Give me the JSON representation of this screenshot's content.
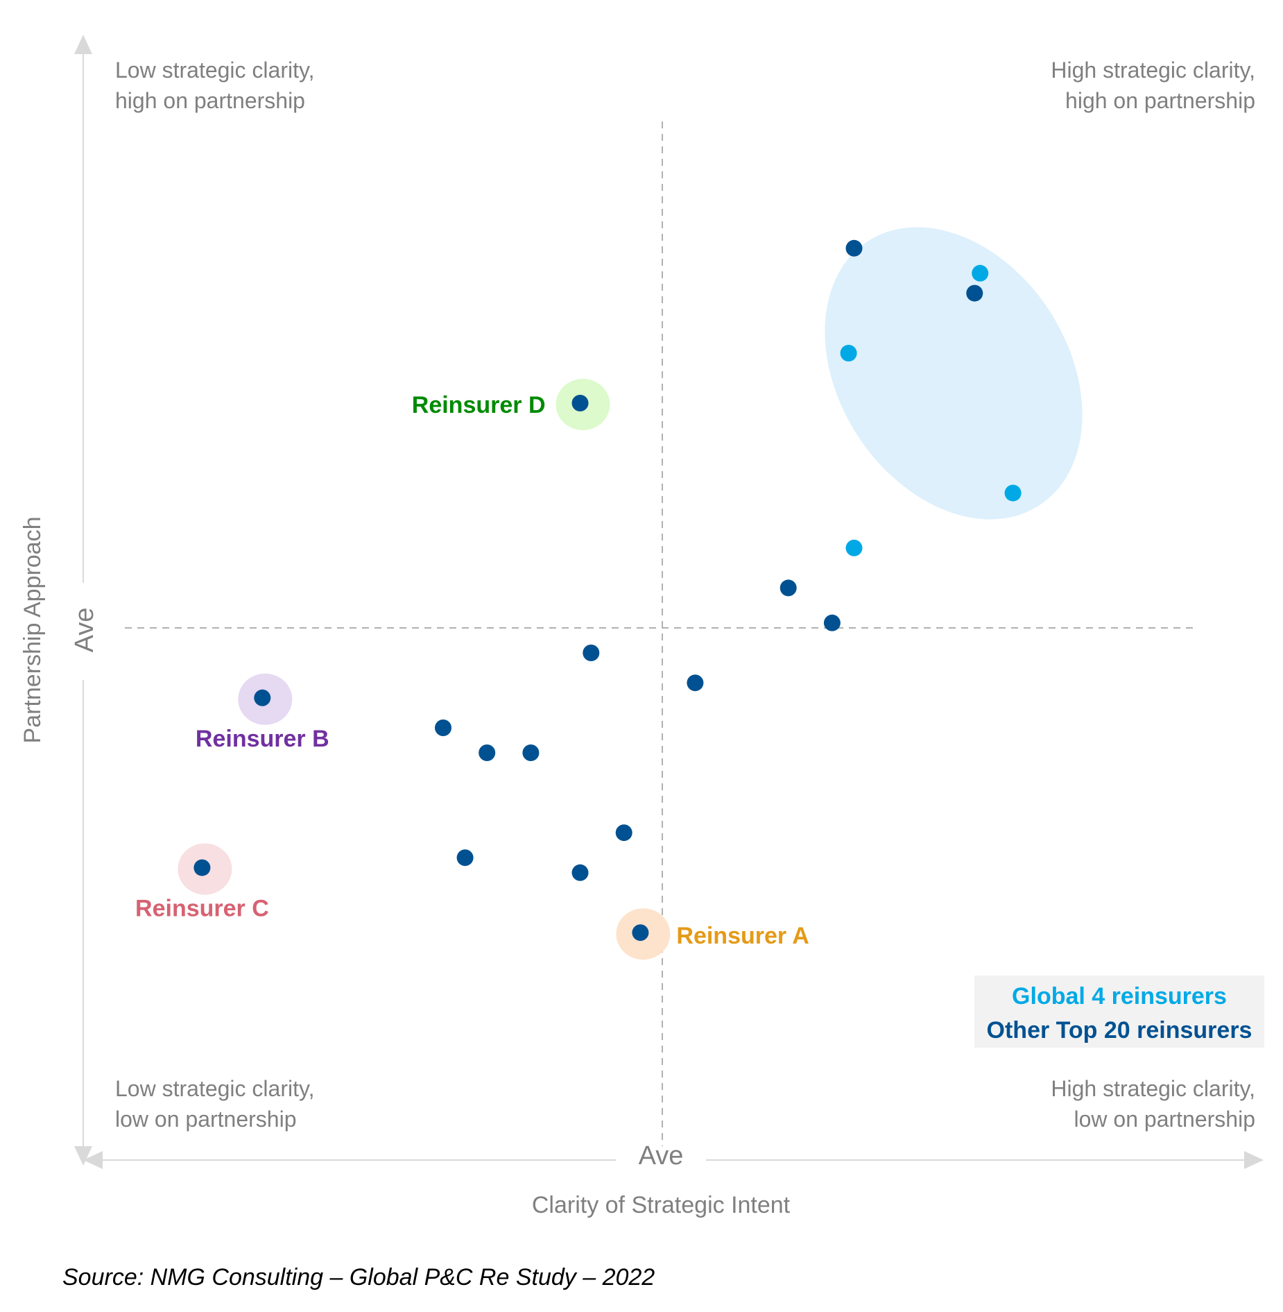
{
  "chart_data": {
    "type": "scatter",
    "xlabel": "Clarity of Strategic Intent",
    "ylabel": "Partnership Approach",
    "x_average_label": "Ave",
    "y_average_label": "Ave",
    "xlim": [
      -10,
      10
    ],
    "ylim": [
      -10,
      10
    ],
    "quadrants": {
      "top_left": [
        "Low strategic clarity,",
        "high on partnership"
      ],
      "top_right": [
        "High strategic clarity,",
        "high on partnership"
      ],
      "bottom_left": [
        "Low strategic clarity,",
        "low on partnership"
      ],
      "bottom_right": [
        "High strategic clarity,",
        "low on partnership"
      ]
    },
    "legend": {
      "placement": "bottom-right",
      "items": [
        {
          "label": "Global 4 reinsurers",
          "color": "#00a9e6"
        },
        {
          "label": "Other Top 20 reinsurers",
          "color": "#005191"
        }
      ]
    },
    "series": [
      {
        "name": "Global 4 reinsurers",
        "color": "#00a9e6",
        "points": [
          [
            5.8,
            7.1
          ],
          [
            3.4,
            5.5
          ],
          [
            6.4,
            2.7
          ],
          [
            3.5,
            1.6
          ]
        ]
      },
      {
        "name": "Other Top 20 reinsurers",
        "color": "#005191",
        "points": [
          [
            3.5,
            7.6
          ],
          [
            5.7,
            6.7
          ],
          [
            -1.5,
            4.5
          ],
          [
            2.3,
            0.8
          ],
          [
            3.1,
            0.1
          ],
          [
            -1.3,
            -0.5
          ],
          [
            0.6,
            -1.1
          ],
          [
            -7.3,
            -1.4
          ],
          [
            -4.0,
            -2.0
          ],
          [
            -3.2,
            -2.5
          ],
          [
            -2.4,
            -2.5
          ],
          [
            -0.7,
            -4.1
          ],
          [
            -3.6,
            -4.6
          ],
          [
            -1.5,
            -4.9
          ],
          [
            -8.4,
            -4.8
          ],
          [
            -0.4,
            -6.1
          ]
        ]
      }
    ],
    "highlights": [
      {
        "label": "Reinsurer D",
        "x": -1.5,
        "y": 4.5,
        "color": "#008a00",
        "halo": "#dcfacb",
        "label_side": "left"
      },
      {
        "label": "Reinsurer B",
        "x": -7.3,
        "y": -1.4,
        "color": "#7030a0",
        "halo": "#e6d9f2",
        "label_side": "below"
      },
      {
        "label": "Reinsurer C",
        "x": -8.4,
        "y": -4.8,
        "color": "#d66272",
        "halo": "#f8dfe2",
        "label_side": "below"
      },
      {
        "label": "Reinsurer A",
        "x": -0.4,
        "y": -6.1,
        "color": "#e59a17",
        "halo": "#fde3cc",
        "label_side": "right"
      }
    ],
    "cluster_color": "#ddf0fc"
  },
  "source": "Source: NMG Consulting – Global P&C Re Study – 2022"
}
